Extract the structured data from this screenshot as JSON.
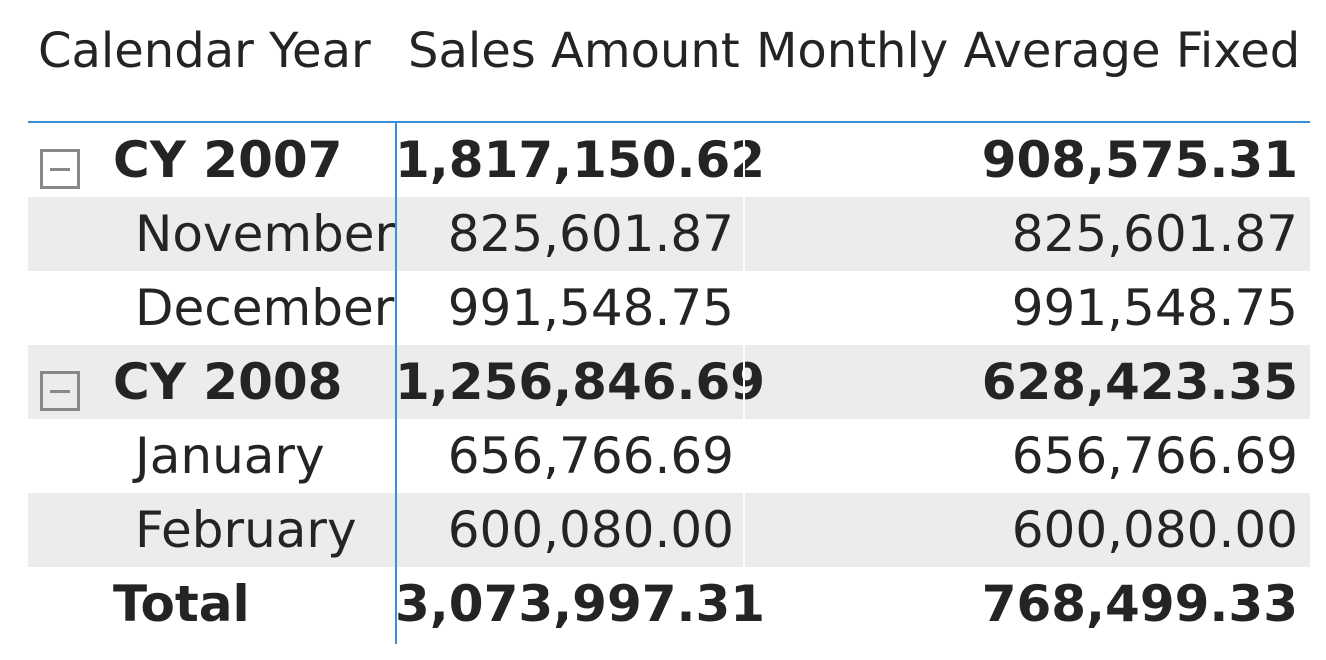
{
  "columns": {
    "calendar_year": "Calendar Year",
    "sales_amount": "Sales Amount",
    "monthly_average_fixed": "Monthly Average Fixed"
  },
  "rows": [
    {
      "type": "year",
      "label": "CY 2007",
      "sales": "1,817,150.62",
      "avg": "908,575.31"
    },
    {
      "type": "month",
      "label": "November",
      "sales": "825,601.87",
      "avg": "825,601.87"
    },
    {
      "type": "month",
      "label": "December",
      "sales": "991,548.75",
      "avg": "991,548.75"
    },
    {
      "type": "year",
      "label": "CY 2008",
      "sales": "1,256,846.69",
      "avg": "628,423.35"
    },
    {
      "type": "month",
      "label": "January",
      "sales": "656,766.69",
      "avg": "656,766.69"
    },
    {
      "type": "month",
      "label": "February",
      "sales": "600,080.00",
      "avg": "600,080.00"
    }
  ],
  "total": {
    "label": "Total",
    "sales": "3,073,997.31",
    "avg": "768,499.33"
  },
  "colors": {
    "accent": "#3a8fd6",
    "row_shade": "#ececec",
    "text": "#252423",
    "icon": "#8a8886"
  },
  "icons": {
    "collapse": "collapse-minus-icon"
  }
}
